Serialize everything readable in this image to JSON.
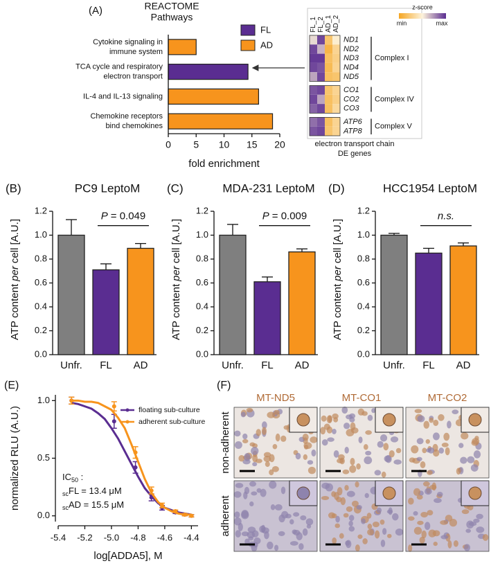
{
  "chart_data": [
    {
      "type": "hbar",
      "panel": "(A)",
      "title": [
        "REACTOME",
        "Pathways"
      ],
      "categories": [
        [
          "Cytokine signaling in",
          "immune system"
        ],
        [
          "TCA cycle and respiratory",
          "electron transport"
        ],
        [
          "IL-4 and IL-13 signaling"
        ],
        [
          "Chemokine receptors",
          "bind chemokines"
        ]
      ],
      "values": [
        5,
        14.3,
        16.2,
        18.7
      ],
      "colors": [
        "#f7941d",
        "#5a2d91",
        "#f7941d",
        "#f7941d"
      ],
      "legend": [
        {
          "name": "FL",
          "color": "#5a2d91"
        },
        {
          "name": "AD",
          "color": "#f7941d"
        }
      ],
      "xlim": [
        0,
        20
      ],
      "xticks": [
        0,
        5,
        10,
        15,
        20
      ],
      "xlabel": "fold enrichment"
    },
    {
      "type": "heatmap",
      "columns": [
        "FL_1",
        "FL_2",
        "AD_1",
        "AD_2"
      ],
      "zlim": [
        -1.5,
        1.5
      ],
      "colormap": [
        "#f5a623",
        "#fdf3dc",
        "#5a2d91"
      ],
      "colorbar_title": "z-score",
      "colorbar_labels": [
        "min",
        "max"
      ],
      "groups": [
        {
          "name": "Complex I",
          "rows": [
            "ND1",
            "ND2",
            "ND3",
            "ND4",
            "ND5"
          ],
          "values": [
            [
              0.2,
              1.3,
              -0.9,
              -0.1
            ],
            [
              1.3,
              0.5,
              -1.2,
              -0.6
            ],
            [
              1.4,
              1.4,
              -1.0,
              -0.7
            ],
            [
              1.3,
              1.2,
              -1.1,
              -0.6
            ],
            [
              0.6,
              1.3,
              -1.0,
              -0.9
            ]
          ]
        },
        {
          "name": "Complex IV",
          "rows": [
            "CO1",
            "CO2",
            "CO3"
          ],
          "values": [
            [
              1.2,
              1.3,
              -0.9,
              -0.6
            ],
            [
              1.3,
              0.6,
              -1.0,
              -0.7
            ],
            [
              1.1,
              1.3,
              -1.0,
              -0.5
            ]
          ]
        },
        {
          "name": "Complex V",
          "rows": [
            "ATP6",
            "ATP8"
          ],
          "values": [
            [
              1.0,
              1.2,
              -1.0,
              -0.6
            ],
            [
              1.2,
              1.3,
              -0.9,
              -0.6
            ]
          ]
        }
      ],
      "caption": [
        "electron transport chain",
        "DE genes"
      ]
    },
    {
      "type": "bar",
      "panel": "(B)",
      "title": "PC9 LeptoM",
      "categories": [
        "Unfr.",
        "FL",
        "AD"
      ],
      "values": [
        1.0,
        0.71,
        0.89
      ],
      "errors": [
        0.13,
        0.05,
        0.04
      ],
      "colors": [
        "#7f7f7f",
        "#5a2d91",
        "#f7941d"
      ],
      "ylim": [
        0,
        1.2
      ],
      "yticks": [
        {
          "value": 0,
          "label": "0.0"
        },
        0.2,
        0.4,
        0.6,
        0.8,
        {
          "value": 1,
          "label": "1.0"
        },
        1.2
      ],
      "ylabel": [
        "ATP content",
        "per",
        "cell [A.U.]"
      ],
      "annotation": [
        "P",
        "= 0.049"
      ]
    },
    {
      "type": "bar",
      "panel": "(C)",
      "title": "MDA-231 LeptoM",
      "categories": [
        "Unfr.",
        "FL",
        "AD"
      ],
      "values": [
        1.0,
        0.61,
        0.86
      ],
      "errors": [
        0.09,
        0.04,
        0.025
      ],
      "colors": [
        "#7f7f7f",
        "#5a2d91",
        "#f7941d"
      ],
      "ylim": [
        0,
        1.2
      ],
      "yticks": [
        {
          "value": 0,
          "label": "0.0"
        },
        0.2,
        0.4,
        0.6,
        0.8,
        {
          "value": 1,
          "label": "1.0"
        },
        1.2
      ],
      "ylabel": [
        "ATP content",
        "per",
        "cell [A.U.]"
      ],
      "annotation": [
        "P",
        "= 0.009"
      ]
    },
    {
      "type": "bar",
      "panel": "(D)",
      "title": "HCC1954 LeptoM",
      "categories": [
        "Unfr.",
        "FL",
        "AD"
      ],
      "values": [
        1.0,
        0.85,
        0.91
      ],
      "errors": [
        0.015,
        0.04,
        0.025
      ],
      "colors": [
        "#7f7f7f",
        "#5a2d91",
        "#f7941d"
      ],
      "ylim": [
        0,
        1.2
      ],
      "yticks": [
        {
          "value": 0,
          "label": "0.0"
        },
        0.2,
        0.4,
        0.6,
        0.8,
        {
          "value": 1,
          "label": "1.0"
        },
        1.2
      ],
      "ylabel": [
        "ATP content",
        "per",
        "cell [A.U.]"
      ],
      "annotation": [
        "n.s."
      ]
    },
    {
      "type": "line",
      "panel": "(E)",
      "x": [
        -5.3,
        -4.98,
        -4.82,
        -4.7,
        -4.62,
        -4.52,
        -4.45,
        -4.4
      ],
      "series": [
        {
          "name": "floating sub-culture",
          "color": "#5a2d91",
          "values": [
            1.0,
            0.82,
            0.42,
            0.16,
            0.07,
            0.03,
            0.01,
            0.0
          ],
          "errors": [
            0.03,
            0.06,
            0.05,
            0.03,
            0.02,
            0.01,
            0.01,
            0.01
          ],
          "fit": {
            "x": [
              -5.3,
              -5.25,
              -5.2,
              -5.15,
              -5.1,
              -5.05,
              -5.0,
              -4.95,
              -4.9,
              -4.85,
              -4.8,
              -4.75,
              -4.7,
              -4.65,
              -4.6,
              -4.55,
              -4.5,
              -4.45,
              -4.4
            ],
            "values": [
              0.98,
              0.97,
              0.95,
              0.93,
              0.89,
              0.84,
              0.76,
              0.67,
              0.56,
              0.45,
              0.34,
              0.24,
              0.17,
              0.11,
              0.07,
              0.05,
              0.03,
              0.02,
              0.01
            ]
          }
        },
        {
          "name": "adherent sub-culture",
          "color": "#f7941d",
          "values": [
            1.0,
            0.95,
            0.55,
            0.22,
            0.09,
            0.04,
            0.01,
            0.0
          ],
          "errors": [
            0.03,
            0.04,
            0.05,
            0.03,
            0.02,
            0.01,
            0.01,
            0.01
          ],
          "fit": {
            "x": [
              -5.3,
              -5.25,
              -5.2,
              -5.15,
              -5.1,
              -5.05,
              -5.0,
              -4.95,
              -4.9,
              -4.85,
              -4.8,
              -4.75,
              -4.7,
              -4.65,
              -4.6,
              -4.55,
              -4.5,
              -4.45,
              -4.4
            ],
            "values": [
              1.0,
              1.0,
              0.99,
              0.99,
              0.98,
              0.95,
              0.92,
              0.85,
              0.76,
              0.62,
              0.47,
              0.32,
              0.2,
              0.12,
              0.07,
              0.04,
              0.02,
              0.01,
              0.01
            ]
          }
        }
      ],
      "xlim": [
        -5.4,
        -4.35
      ],
      "xticks": [
        -5.4,
        -5.2,
        {
          "value": -5,
          "label": "-5.0"
        },
        -4.8,
        -4.6,
        -4.4
      ],
      "ylim": [
        -0.05,
        1.05
      ],
      "yticks": [
        {
          "value": 0,
          "label": "0.0"
        },
        0.5,
        {
          "value": 1,
          "label": "1.0"
        }
      ],
      "xlabel": "log[ADDA5], M",
      "ylabel": "normalized RLU (A.U.)",
      "annotation": [
        [
          {
            "text": "IC"
          },
          {
            "sub": "50"
          },
          {
            "text": " :"
          }
        ],
        [
          {
            "sub": "sc"
          },
          {
            "text": "FL = 13.4 μM"
          }
        ],
        [
          {
            "sub": "sc"
          },
          {
            "text": "AD = 15.5 μM"
          }
        ]
      ]
    }
  ],
  "micrographs": {
    "panel": "(F)",
    "columns": [
      "MT-ND5",
      "MT-CO1",
      "MT-CO2"
    ],
    "rows": [
      "non-adherent",
      "adherent"
    ]
  }
}
